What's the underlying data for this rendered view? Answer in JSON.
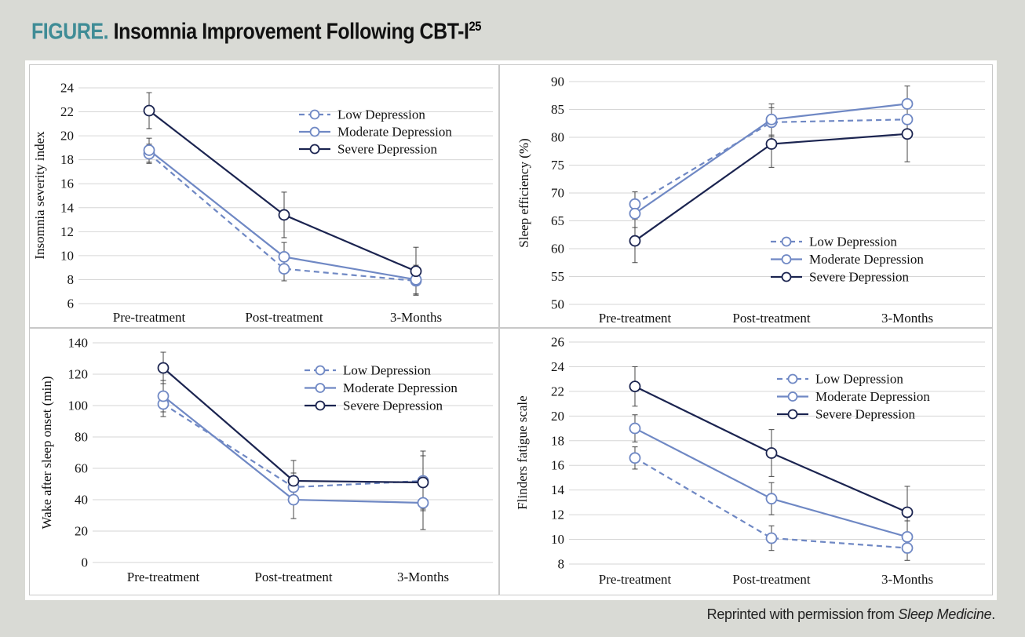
{
  "figure": {
    "label": "FIGURE.",
    "title": "Insomnia Improvement Following CBT-I",
    "superscript": "25",
    "credit_prefix": "Reprinted with permission from ",
    "credit_source": "Sleep Medicine",
    "credit_suffix": "."
  },
  "colors": {
    "low": "#6f88c4",
    "moderate": "#6f88c4",
    "severe": "#1b2450",
    "background": "#d9dad5",
    "title_accent": "#3f8c96"
  },
  "chart_data": [
    {
      "type": "line",
      "categories": [
        "Pre-treatment",
        "Post-treatment",
        "3-Months"
      ],
      "ylabel": "Insomnia severity index",
      "xlabel": "",
      "ylim": [
        6,
        24
      ],
      "yticks": [
        6,
        8,
        10,
        12,
        14,
        16,
        18,
        20,
        22,
        24
      ],
      "grid": true,
      "legend_position": "top-right",
      "series": [
        {
          "name": "Low Depression",
          "style": "dashed",
          "values": [
            18.5,
            8.9,
            7.9
          ],
          "errors": [
            0.8,
            1.0,
            1.1
          ]
        },
        {
          "name": "Moderate Depression",
          "style": "solid",
          "values": [
            18.8,
            9.9,
            8.0
          ],
          "errors": [
            1.0,
            1.2,
            1.2
          ]
        },
        {
          "name": "Severe Depression",
          "style": "solid",
          "values": [
            22.1,
            13.4,
            8.7
          ],
          "errors": [
            1.5,
            1.9,
            2.0
          ]
        }
      ]
    },
    {
      "type": "line",
      "categories": [
        "Pre-treatment",
        "Post-treatment",
        "3-Months"
      ],
      "ylabel": "Sleep efficiency (%)",
      "xlabel": "",
      "ylim": [
        50,
        90
      ],
      "yticks": [
        50,
        55,
        60,
        65,
        70,
        75,
        80,
        85,
        90
      ],
      "grid": true,
      "legend_position": "bottom-right",
      "series": [
        {
          "name": "Low Depression",
          "style": "dashed",
          "values": [
            68.0,
            82.7,
            83.2
          ],
          "errors": [
            2.2,
            2.6,
            3.0
          ]
        },
        {
          "name": "Moderate Depression",
          "style": "solid",
          "values": [
            66.3,
            83.2,
            86.0
          ],
          "errors": [
            2.5,
            2.8,
            3.2
          ]
        },
        {
          "name": "Severe Depression",
          "style": "solid",
          "values": [
            61.4,
            78.8,
            80.6
          ],
          "errors": [
            3.9,
            4.2,
            5.0
          ]
        }
      ]
    },
    {
      "type": "line",
      "categories": [
        "Pre-treatment",
        "Post-treatment",
        "3-Months"
      ],
      "ylabel": "Wake after sleep onset (min)",
      "xlabel": "",
      "ylim": [
        0,
        140
      ],
      "yticks": [
        0,
        20,
        40,
        60,
        80,
        100,
        120,
        140
      ],
      "grid": true,
      "legend_position": "top-right",
      "series": [
        {
          "name": "Low Depression",
          "style": "dashed",
          "values": [
            101,
            48,
            52
          ],
          "errors": [
            8,
            9,
            19
          ]
        },
        {
          "name": "Moderate Depression",
          "style": "solid",
          "values": [
            106,
            40,
            38
          ],
          "errors": [
            10,
            12,
            17
          ]
        },
        {
          "name": "Severe Depression",
          "style": "solid",
          "values": [
            124,
            52,
            51
          ],
          "errors": [
            10,
            13,
            17
          ]
        }
      ]
    },
    {
      "type": "line",
      "categories": [
        "Pre-treatment",
        "Post-treatment",
        "3-Months"
      ],
      "ylabel": "Flinders fatigue scale",
      "xlabel": "",
      "ylim": [
        8,
        26
      ],
      "yticks": [
        8,
        10,
        12,
        14,
        16,
        18,
        20,
        22,
        24,
        26
      ],
      "grid": true,
      "legend_position": "top-right",
      "series": [
        {
          "name": "Low Depression",
          "style": "dashed",
          "values": [
            16.6,
            10.1,
            9.3
          ],
          "errors": [
            0.9,
            1.0,
            1.0
          ]
        },
        {
          "name": "Moderate Depression",
          "style": "solid",
          "values": [
            19.0,
            13.3,
            10.2
          ],
          "errors": [
            1.1,
            1.3,
            1.3
          ]
        },
        {
          "name": "Severe Depression",
          "style": "solid",
          "values": [
            22.4,
            17.0,
            12.2
          ],
          "errors": [
            1.6,
            1.9,
            2.1
          ]
        }
      ]
    }
  ]
}
